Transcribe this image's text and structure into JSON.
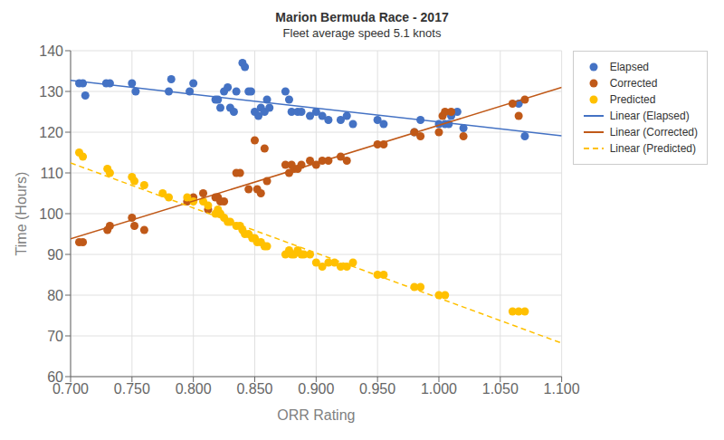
{
  "chart_data": {
    "type": "scatter",
    "title": "Marion Bermuda Race - 2017",
    "subtitle": "Fleet average speed 5.1 knots",
    "xlabel": "ORR Rating",
    "ylabel": "Time (Hours)",
    "xlim": [
      0.7,
      1.1
    ],
    "ylim": [
      60,
      140
    ],
    "xticks": [
      {
        "value": 0.7,
        "label": "0.700"
      },
      {
        "value": 0.75,
        "label": "0.750"
      },
      {
        "value": 0.8,
        "label": "0.800"
      },
      {
        "value": 0.85,
        "label": "0.850"
      },
      {
        "value": 0.9,
        "label": "0.900"
      },
      {
        "value": 0.95,
        "label": "0.950"
      },
      {
        "value": 1.0,
        "label": "1.000"
      },
      {
        "value": 1.05,
        "label": "1.050"
      },
      {
        "value": 1.1,
        "label": "1.100"
      }
    ],
    "yticks": [
      60,
      70,
      80,
      90,
      100,
      110,
      120,
      130,
      140
    ],
    "grid": true,
    "legend": "upper right",
    "series": [
      {
        "name": "Elapsed",
        "type": "scatter",
        "marker": "circle",
        "color": "#4472C4",
        "x": [
          0.707,
          0.71,
          0.712,
          0.729,
          0.732,
          0.75,
          0.753,
          0.78,
          0.782,
          0.797,
          0.8,
          0.818,
          0.82,
          0.822,
          0.825,
          0.828,
          0.83,
          0.833,
          0.835,
          0.84,
          0.842,
          0.845,
          0.847,
          0.85,
          0.853,
          0.855,
          0.858,
          0.86,
          0.862,
          0.875,
          0.878,
          0.88,
          0.885,
          0.888,
          0.895,
          0.9,
          0.905,
          0.91,
          0.92,
          0.925,
          0.93,
          0.95,
          0.955,
          0.98,
          0.985,
          1.0,
          1.005,
          1.008,
          1.01,
          1.015,
          1.02,
          1.065,
          1.07
        ],
        "values": [
          132,
          132,
          129,
          132,
          132,
          132,
          130,
          130,
          133,
          130,
          132,
          128,
          128,
          126,
          130,
          131,
          126,
          125,
          130,
          137,
          136,
          130,
          130,
          125,
          124,
          126,
          125,
          128,
          126,
          130,
          128,
          125,
          125,
          125,
          124,
          125,
          124,
          123,
          123,
          124,
          122,
          123,
          122,
          120,
          123,
          122,
          122,
          122,
          124,
          125,
          121,
          127,
          119
        ]
      },
      {
        "name": "Corrected",
        "type": "scatter",
        "marker": "circle",
        "color": "#C05918",
        "x": [
          0.707,
          0.71,
          0.73,
          0.732,
          0.75,
          0.752,
          0.76,
          0.795,
          0.8,
          0.808,
          0.812,
          0.818,
          0.82,
          0.822,
          0.825,
          0.835,
          0.838,
          0.845,
          0.85,
          0.852,
          0.855,
          0.858,
          0.86,
          0.875,
          0.878,
          0.88,
          0.882,
          0.885,
          0.888,
          0.895,
          0.9,
          0.905,
          0.91,
          0.92,
          0.925,
          0.95,
          0.955,
          0.98,
          0.985,
          1.0,
          1.003,
          1.005,
          1.01,
          1.02,
          1.06,
          1.065,
          1.07
        ],
        "values": [
          93,
          93,
          96,
          97,
          99,
          97,
          96,
          103,
          104,
          105,
          101,
          104,
          104,
          103,
          103,
          110,
          110,
          106,
          118,
          106,
          105,
          116,
          108,
          112,
          110,
          112,
          111,
          111,
          112,
          113,
          112,
          113,
          113,
          114,
          113,
          117,
          117,
          120,
          119,
          120,
          124,
          125,
          125,
          119,
          127,
          124,
          128
        ]
      },
      {
        "name": "Predicted",
        "type": "scatter",
        "marker": "circle",
        "color": "#FFC000",
        "x": [
          0.707,
          0.71,
          0.73,
          0.732,
          0.75,
          0.752,
          0.76,
          0.775,
          0.78,
          0.795,
          0.8,
          0.808,
          0.812,
          0.818,
          0.82,
          0.822,
          0.825,
          0.828,
          0.83,
          0.835,
          0.838,
          0.84,
          0.842,
          0.845,
          0.848,
          0.85,
          0.852,
          0.855,
          0.858,
          0.86,
          0.875,
          0.878,
          0.88,
          0.882,
          0.885,
          0.888,
          0.89,
          0.895,
          0.9,
          0.905,
          0.91,
          0.915,
          0.92,
          0.925,
          0.93,
          0.95,
          0.955,
          0.98,
          0.985,
          1.0,
          1.005,
          1.06,
          1.065,
          1.07
        ],
        "values": [
          115,
          114,
          111,
          110,
          109,
          108,
          107,
          105,
          104,
          104,
          103,
          103,
          102,
          100,
          101,
          100,
          99,
          98,
          98,
          97,
          97,
          96,
          95,
          95,
          94,
          94,
          93,
          93,
          92,
          92,
          90,
          91,
          90,
          90,
          91,
          90,
          90,
          90,
          88,
          87,
          88,
          88,
          87,
          87,
          88,
          85,
          85,
          82,
          82,
          80,
          80,
          76,
          76,
          76
        ]
      },
      {
        "name": "Linear (Elapsed)",
        "type": "line",
        "line_style": "solid",
        "color": "#4472C4",
        "x": [
          0.7,
          1.1
        ],
        "values": [
          132.697,
          119.117
        ]
      },
      {
        "name": "Linear (Corrected)",
        "type": "line",
        "line_style": "solid",
        "color": "#C05918",
        "x": [
          0.7,
          1.1
        ],
        "values": [
          93.806,
          130.995
        ]
      },
      {
        "name": "Linear (Predicted)",
        "type": "line",
        "line_style": "dashed",
        "color": "#FFC000",
        "x": [
          0.7,
          1.1
        ],
        "values": [
          112.462,
          68.229
        ]
      }
    ]
  }
}
